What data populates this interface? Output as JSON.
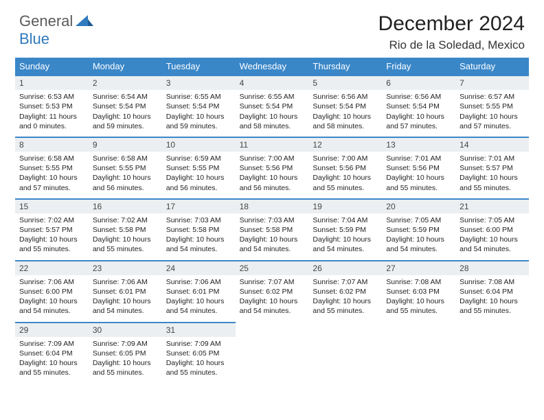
{
  "logo": {
    "general": "General",
    "blue": "Blue"
  },
  "header": {
    "title": "December 2024",
    "location": "Rio de la Soledad, Mexico"
  },
  "colors": {
    "headerBar": "#3a87c8",
    "daynumBg": "#eceff1",
    "daynumBorder": "#3a87c8",
    "logoBlue": "#2f79bd",
    "logoGray": "#5a5a5a"
  },
  "weekdays": [
    "Sunday",
    "Monday",
    "Tuesday",
    "Wednesday",
    "Thursday",
    "Friday",
    "Saturday"
  ],
  "weeks": [
    [
      {
        "n": "1",
        "sr": "Sunrise: 6:53 AM",
        "ss": "Sunset: 5:53 PM",
        "d1": "Daylight: 11 hours",
        "d2": "and 0 minutes."
      },
      {
        "n": "2",
        "sr": "Sunrise: 6:54 AM",
        "ss": "Sunset: 5:54 PM",
        "d1": "Daylight: 10 hours",
        "d2": "and 59 minutes."
      },
      {
        "n": "3",
        "sr": "Sunrise: 6:55 AM",
        "ss": "Sunset: 5:54 PM",
        "d1": "Daylight: 10 hours",
        "d2": "and 59 minutes."
      },
      {
        "n": "4",
        "sr": "Sunrise: 6:55 AM",
        "ss": "Sunset: 5:54 PM",
        "d1": "Daylight: 10 hours",
        "d2": "and 58 minutes."
      },
      {
        "n": "5",
        "sr": "Sunrise: 6:56 AM",
        "ss": "Sunset: 5:54 PM",
        "d1": "Daylight: 10 hours",
        "d2": "and 58 minutes."
      },
      {
        "n": "6",
        "sr": "Sunrise: 6:56 AM",
        "ss": "Sunset: 5:54 PM",
        "d1": "Daylight: 10 hours",
        "d2": "and 57 minutes."
      },
      {
        "n": "7",
        "sr": "Sunrise: 6:57 AM",
        "ss": "Sunset: 5:55 PM",
        "d1": "Daylight: 10 hours",
        "d2": "and 57 minutes."
      }
    ],
    [
      {
        "n": "8",
        "sr": "Sunrise: 6:58 AM",
        "ss": "Sunset: 5:55 PM",
        "d1": "Daylight: 10 hours",
        "d2": "and 57 minutes."
      },
      {
        "n": "9",
        "sr": "Sunrise: 6:58 AM",
        "ss": "Sunset: 5:55 PM",
        "d1": "Daylight: 10 hours",
        "d2": "and 56 minutes."
      },
      {
        "n": "10",
        "sr": "Sunrise: 6:59 AM",
        "ss": "Sunset: 5:55 PM",
        "d1": "Daylight: 10 hours",
        "d2": "and 56 minutes."
      },
      {
        "n": "11",
        "sr": "Sunrise: 7:00 AM",
        "ss": "Sunset: 5:56 PM",
        "d1": "Daylight: 10 hours",
        "d2": "and 56 minutes."
      },
      {
        "n": "12",
        "sr": "Sunrise: 7:00 AM",
        "ss": "Sunset: 5:56 PM",
        "d1": "Daylight: 10 hours",
        "d2": "and 55 minutes."
      },
      {
        "n": "13",
        "sr": "Sunrise: 7:01 AM",
        "ss": "Sunset: 5:56 PM",
        "d1": "Daylight: 10 hours",
        "d2": "and 55 minutes."
      },
      {
        "n": "14",
        "sr": "Sunrise: 7:01 AM",
        "ss": "Sunset: 5:57 PM",
        "d1": "Daylight: 10 hours",
        "d2": "and 55 minutes."
      }
    ],
    [
      {
        "n": "15",
        "sr": "Sunrise: 7:02 AM",
        "ss": "Sunset: 5:57 PM",
        "d1": "Daylight: 10 hours",
        "d2": "and 55 minutes."
      },
      {
        "n": "16",
        "sr": "Sunrise: 7:02 AM",
        "ss": "Sunset: 5:58 PM",
        "d1": "Daylight: 10 hours",
        "d2": "and 55 minutes."
      },
      {
        "n": "17",
        "sr": "Sunrise: 7:03 AM",
        "ss": "Sunset: 5:58 PM",
        "d1": "Daylight: 10 hours",
        "d2": "and 54 minutes."
      },
      {
        "n": "18",
        "sr": "Sunrise: 7:03 AM",
        "ss": "Sunset: 5:58 PM",
        "d1": "Daylight: 10 hours",
        "d2": "and 54 minutes."
      },
      {
        "n": "19",
        "sr": "Sunrise: 7:04 AM",
        "ss": "Sunset: 5:59 PM",
        "d1": "Daylight: 10 hours",
        "d2": "and 54 minutes."
      },
      {
        "n": "20",
        "sr": "Sunrise: 7:05 AM",
        "ss": "Sunset: 5:59 PM",
        "d1": "Daylight: 10 hours",
        "d2": "and 54 minutes."
      },
      {
        "n": "21",
        "sr": "Sunrise: 7:05 AM",
        "ss": "Sunset: 6:00 PM",
        "d1": "Daylight: 10 hours",
        "d2": "and 54 minutes."
      }
    ],
    [
      {
        "n": "22",
        "sr": "Sunrise: 7:06 AM",
        "ss": "Sunset: 6:00 PM",
        "d1": "Daylight: 10 hours",
        "d2": "and 54 minutes."
      },
      {
        "n": "23",
        "sr": "Sunrise: 7:06 AM",
        "ss": "Sunset: 6:01 PM",
        "d1": "Daylight: 10 hours",
        "d2": "and 54 minutes."
      },
      {
        "n": "24",
        "sr": "Sunrise: 7:06 AM",
        "ss": "Sunset: 6:01 PM",
        "d1": "Daylight: 10 hours",
        "d2": "and 54 minutes."
      },
      {
        "n": "25",
        "sr": "Sunrise: 7:07 AM",
        "ss": "Sunset: 6:02 PM",
        "d1": "Daylight: 10 hours",
        "d2": "and 54 minutes."
      },
      {
        "n": "26",
        "sr": "Sunrise: 7:07 AM",
        "ss": "Sunset: 6:02 PM",
        "d1": "Daylight: 10 hours",
        "d2": "and 55 minutes."
      },
      {
        "n": "27",
        "sr": "Sunrise: 7:08 AM",
        "ss": "Sunset: 6:03 PM",
        "d1": "Daylight: 10 hours",
        "d2": "and 55 minutes."
      },
      {
        "n": "28",
        "sr": "Sunrise: 7:08 AM",
        "ss": "Sunset: 6:04 PM",
        "d1": "Daylight: 10 hours",
        "d2": "and 55 minutes."
      }
    ],
    [
      {
        "n": "29",
        "sr": "Sunrise: 7:09 AM",
        "ss": "Sunset: 6:04 PM",
        "d1": "Daylight: 10 hours",
        "d2": "and 55 minutes."
      },
      {
        "n": "30",
        "sr": "Sunrise: 7:09 AM",
        "ss": "Sunset: 6:05 PM",
        "d1": "Daylight: 10 hours",
        "d2": "and 55 minutes."
      },
      {
        "n": "31",
        "sr": "Sunrise: 7:09 AM",
        "ss": "Sunset: 6:05 PM",
        "d1": "Daylight: 10 hours",
        "d2": "and 55 minutes."
      },
      null,
      null,
      null,
      null
    ]
  ]
}
